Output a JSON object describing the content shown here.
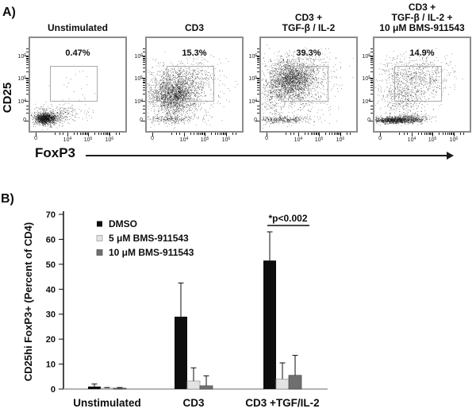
{
  "panel_a": {
    "label": "A)"
  },
  "panel_b": {
    "label": "B)"
  },
  "chart_data": [
    {
      "type": "scatter",
      "panel": "A",
      "xlabel": "FoxP3",
      "ylabel": "CD25",
      "x_scale": "biexponential: 0, 10^4, 10^5, 10^6",
      "y_scale": "biexponential: 0, 10^4, 10^5, 10^6",
      "y_ticks": [
        {
          "t": "10",
          "s": "6",
          "f": 0.198
        },
        {
          "t": "10",
          "s": "5",
          "f": 0.43
        },
        {
          "t": "10",
          "s": "4",
          "f": 0.67
        },
        {
          "t": "0",
          "s": "",
          "f": 0.876
        }
      ],
      "x_ticks": [
        {
          "t": "0",
          "s": "",
          "f": 0.073
        },
        {
          "t": "10",
          "s": "4",
          "f": 0.395
        },
        {
          "t": "10",
          "s": "5",
          "f": 0.605
        },
        {
          "t": "10",
          "s": "6",
          "f": 0.822
        }
      ],
      "gate": {
        "x0": 0.218,
        "y0": 0.306,
        "x1": 0.702,
        "y1": 0.678
      },
      "plots": [
        {
          "title_lines": [
            "Unstimulated"
          ],
          "percent": "0.47%",
          "seed": 3,
          "clusters": [
            [
              0.16,
              0.87,
              0.05,
              0.028,
              1000
            ],
            [
              0.19,
              0.855,
              0.1,
              0.05,
              400
            ],
            [
              0.33,
              0.81,
              0.13,
              0.05,
              160
            ],
            [
              0.48,
              0.55,
              0.16,
              0.13,
              22
            ]
          ]
        },
        {
          "title_lines": [
            "CD3"
          ],
          "percent": "15.3%",
          "seed": 7,
          "clusters": [
            [
              0.28,
              0.62,
              0.11,
              0.1,
              1500
            ],
            [
              0.33,
              0.57,
              0.18,
              0.15,
              900
            ],
            [
              0.42,
              0.4,
              0.15,
              0.09,
              280
            ],
            [
              0.22,
              0.875,
              0.14,
              0.022,
              250
            ],
            [
              0.72,
              0.5,
              0.14,
              0.13,
              35
            ]
          ]
        },
        {
          "title_lines": [
            "CD3 +",
            "TGF-β / IL-2"
          ],
          "percent": "39.3%",
          "seed": 13,
          "clusters": [
            [
              0.32,
              0.44,
              0.11,
              0.1,
              1500
            ],
            [
              0.36,
              0.48,
              0.19,
              0.16,
              900
            ],
            [
              0.24,
              0.88,
              0.16,
              0.02,
              400
            ],
            [
              0.13,
              0.62,
              0.07,
              0.13,
              260
            ],
            [
              0.55,
              0.38,
              0.12,
              0.1,
              160
            ]
          ]
        },
        {
          "title_lines": [
            "CD3 +",
            "TGF-β / IL-2 +",
            "10 μM BMS-911543"
          ],
          "percent": "14.9%",
          "seed": 29,
          "clusters": [
            [
              0.2,
              0.885,
              0.13,
              0.018,
              1000
            ],
            [
              0.38,
              0.865,
              0.1,
              0.026,
              320
            ],
            [
              0.38,
              0.45,
              0.18,
              0.13,
              750
            ],
            [
              0.28,
              0.67,
              0.13,
              0.09,
              300
            ],
            [
              0.6,
              0.38,
              0.13,
              0.1,
              130
            ]
          ]
        }
      ]
    },
    {
      "type": "bar",
      "panel": "B",
      "title": "",
      "xlabel": "",
      "ylabel": "CD25hi FoxP3+ (Percent of CD4)",
      "ylim": [
        0,
        70
      ],
      "ytick_step": 10,
      "grid": false,
      "legend_position": "top-left-inside",
      "categories": [
        "Unstimulated",
        "CD3",
        "CD3 +TGF/IL-2"
      ],
      "series": [
        {
          "name": "DMSO",
          "color": "#0d0d0d",
          "border": "",
          "values": [
            1.0,
            29.0,
            51.5
          ],
          "errors": [
            1.0,
            13.5,
            11.5
          ]
        },
        {
          "name": "5 μM BMS-911543",
          "color": "#e3e3e3",
          "border": "#9e9e9e",
          "values": [
            0.35,
            3.2,
            4.0
          ],
          "errors": [
            0.25,
            5.3,
            6.5
          ]
        },
        {
          "name": "10 μM BMS-911543",
          "color": "#6f6f6f",
          "border": "#555555",
          "values": [
            0.35,
            1.3,
            5.5
          ],
          "errors": [
            0.25,
            4.0,
            8.0
          ]
        }
      ],
      "annotation": {
        "text": "*p<0.002",
        "group": "CD3 +TGF/IL-2",
        "group_index": 2
      }
    }
  ]
}
